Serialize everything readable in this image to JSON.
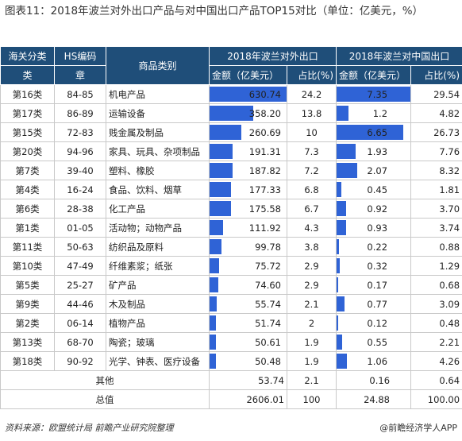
{
  "title": "图表11：2018年波兰对外出口产品与对中国出口产品TOP15对比（单位：亿美元，%）",
  "headers": {
    "h1a": "海关分类",
    "h1b": "类",
    "h2a": "HS编码",
    "h2b": "章",
    "h3": "商品类别",
    "h4": "2018年波兰对外出口",
    "h5": "2018年波兰对中国出口",
    "amount": "金额（亿美元）",
    "share": "占比(%)"
  },
  "rows": [
    {
      "cls": "第16类",
      "hs": "84-85",
      "cat": "机电产品",
      "ex_amt": "630.74",
      "ex_share": "24.2",
      "cn_amt": "7.35",
      "cn_share": "29.54"
    },
    {
      "cls": "第17类",
      "hs": "86-89",
      "cat": "运输设备",
      "ex_amt": "358.20",
      "ex_share": "13.8",
      "cn_amt": "1.2",
      "cn_share": "4.82"
    },
    {
      "cls": "第15类",
      "hs": "72-83",
      "cat": "贱金属及制品",
      "ex_amt": "260.69",
      "ex_share": "10",
      "cn_amt": "6.65",
      "cn_share": "26.73"
    },
    {
      "cls": "第20类",
      "hs": "94-96",
      "cat": "家具、玩具、杂项制品",
      "ex_amt": "191.31",
      "ex_share": "7.3",
      "cn_amt": "1.93",
      "cn_share": "7.76"
    },
    {
      "cls": "第7类",
      "hs": "39-40",
      "cat": "塑料、橡胶",
      "ex_amt": "187.82",
      "ex_share": "7.2",
      "cn_amt": "2.07",
      "cn_share": "8.32"
    },
    {
      "cls": "第4类",
      "hs": "16-24",
      "cat": "食品、饮料、烟草",
      "ex_amt": "177.33",
      "ex_share": "6.8",
      "cn_amt": "0.45",
      "cn_share": "1.81"
    },
    {
      "cls": "第6类",
      "hs": "28-38",
      "cat": "化工产品",
      "ex_amt": "175.58",
      "ex_share": "6.7",
      "cn_amt": "0.92",
      "cn_share": "3.70"
    },
    {
      "cls": "第1类",
      "hs": "01-05",
      "cat": "活动物；动物产品",
      "ex_amt": "111.92",
      "ex_share": "4.3",
      "cn_amt": "0.93",
      "cn_share": "3.74"
    },
    {
      "cls": "第11类",
      "hs": "50-63",
      "cat": "纺织品及原料",
      "ex_amt": "99.78",
      "ex_share": "3.8",
      "cn_amt": "0.22",
      "cn_share": "0.88"
    },
    {
      "cls": "第10类",
      "hs": "47-49",
      "cat": "纤维素浆；纸张",
      "ex_amt": "75.72",
      "ex_share": "2.9",
      "cn_amt": "0.32",
      "cn_share": "1.29"
    },
    {
      "cls": "第5类",
      "hs": "25-27",
      "cat": "矿产品",
      "ex_amt": "74.60",
      "ex_share": "2.9",
      "cn_amt": "0.17",
      "cn_share": "0.68"
    },
    {
      "cls": "第9类",
      "hs": "44-46",
      "cat": "木及制品",
      "ex_amt": "55.74",
      "ex_share": "2.1",
      "cn_amt": "0.77",
      "cn_share": "3.09"
    },
    {
      "cls": "第2类",
      "hs": "06-14",
      "cat": "植物产品",
      "ex_amt": "51.74",
      "ex_share": "2",
      "cn_amt": "0.12",
      "cn_share": "0.48"
    },
    {
      "cls": "第13类",
      "hs": "68-70",
      "cat": "陶瓷；玻璃",
      "ex_amt": "50.61",
      "ex_share": "1.9",
      "cn_amt": "0.55",
      "cn_share": "2.21"
    },
    {
      "cls": "第18类",
      "hs": "90-92",
      "cat": "光学、钟表、医疗设备",
      "ex_amt": "50.48",
      "ex_share": "1.9",
      "cn_amt": "1.06",
      "cn_share": "4.26"
    }
  ],
  "other": {
    "label": "其他",
    "ex_amt": "53.74",
    "ex_share": "2.1",
    "cn_amt": "0.16",
    "cn_share": "0.64"
  },
  "total": {
    "label": "总值",
    "ex_amt": "2606.01",
    "ex_share": "100",
    "cn_amt": "24.88",
    "cn_share": "100.00"
  },
  "bar_max": {
    "ex": 630.74,
    "cn": 7.35
  },
  "bar_color": "#2f63d6",
  "header_color": "#1f4e79",
  "source": "资料来源：欧盟统计局 前瞻产业研究院整理",
  "brand": "@前瞻经济学人APP"
}
